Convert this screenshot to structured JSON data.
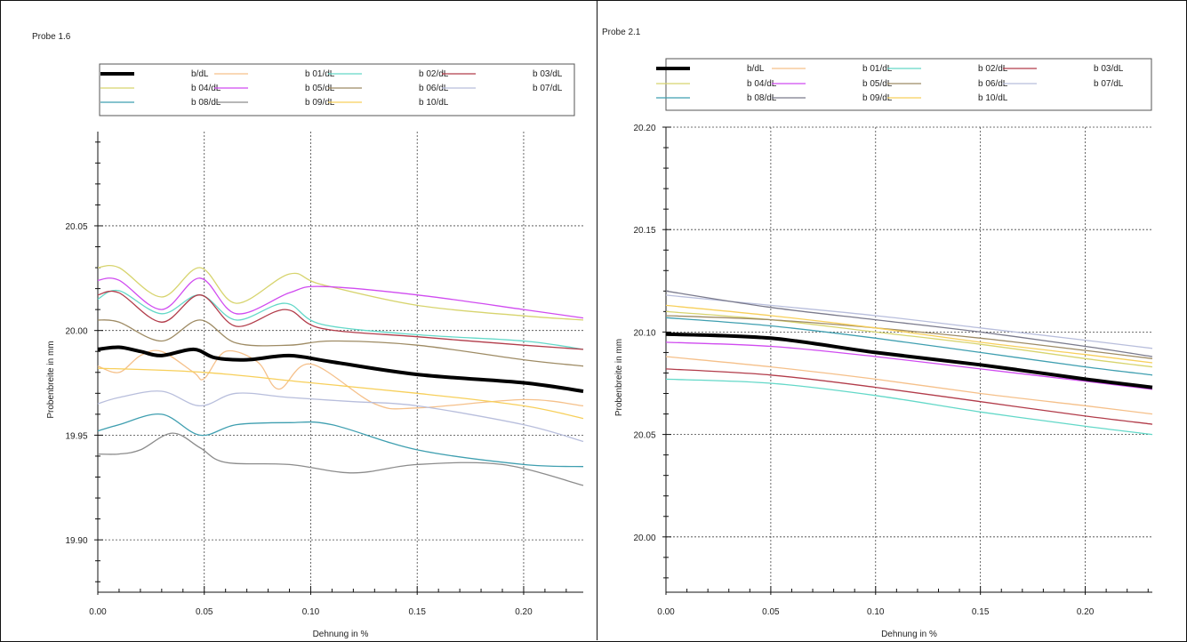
{
  "chart_data": [
    {
      "type": "line",
      "title": "Probe 1.6",
      "xlabel": "Dehnung in %",
      "ylabel": "Probenbreite in mm",
      "xlim": [
        0.0,
        0.228
      ],
      "ylim": [
        19.875,
        20.095
      ],
      "xticks": [
        0.0,
        0.05,
        0.1,
        0.15,
        0.2
      ],
      "xtick_labels": [
        "0.00",
        "0.05",
        "0.10",
        "0.15",
        "0.20"
      ],
      "yticks": [
        19.9,
        19.95,
        20.0,
        20.05
      ],
      "ytick_labels": [
        "19.90",
        "19.95",
        "20.00",
        "20.05"
      ],
      "grid": true,
      "legend_position": "top",
      "series": [
        {
          "name": "b/dL",
          "color": "#000000",
          "bold": true,
          "x": [
            0,
            0.01,
            0.02,
            0.03,
            0.045,
            0.055,
            0.07,
            0.09,
            0.11,
            0.15,
            0.2,
            0.228
          ],
          "y": [
            19.991,
            19.992,
            19.99,
            19.988,
            19.991,
            19.987,
            19.986,
            19.988,
            19.985,
            19.979,
            19.975,
            19.971
          ]
        },
        {
          "name": "b 01/dL",
          "color": "#f5c08a",
          "x": [
            0,
            0.01,
            0.02,
            0.03,
            0.045,
            0.05,
            0.06,
            0.075,
            0.085,
            0.1,
            0.13,
            0.15,
            0.2,
            0.228
          ],
          "y": [
            19.983,
            19.98,
            19.988,
            19.99,
            19.98,
            19.977,
            19.99,
            19.985,
            19.972,
            19.984,
            19.965,
            19.963,
            19.967,
            19.964
          ]
        },
        {
          "name": "b 02/dL",
          "color": "#63d8c8",
          "x": [
            0,
            0.01,
            0.03,
            0.048,
            0.065,
            0.088,
            0.105,
            0.15,
            0.2,
            0.228
          ],
          "y": [
            20.015,
            20.019,
            20.008,
            20.017,
            20.005,
            20.013,
            20.003,
            19.998,
            19.995,
            19.991
          ]
        },
        {
          "name": "b 03/dL",
          "color": "#b23c4a",
          "x": [
            0,
            0.01,
            0.03,
            0.048,
            0.065,
            0.088,
            0.105,
            0.15,
            0.2,
            0.228
          ],
          "y": [
            20.017,
            20.018,
            20.004,
            20.017,
            20.002,
            20.01,
            20.001,
            19.997,
            19.993,
            19.991
          ]
        },
        {
          "name": "b 04/dL",
          "color": "#d7d46e",
          "x": [
            0,
            0.01,
            0.03,
            0.048,
            0.065,
            0.09,
            0.105,
            0.15,
            0.2,
            0.228
          ],
          "y": [
            20.03,
            20.03,
            20.016,
            20.03,
            20.013,
            20.027,
            20.022,
            20.012,
            20.007,
            20.005
          ]
        },
        {
          "name": "b 05/dL",
          "color": "#d04bf0",
          "x": [
            0,
            0.01,
            0.03,
            0.048,
            0.065,
            0.09,
            0.105,
            0.15,
            0.2,
            0.228
          ],
          "y": [
            20.024,
            20.024,
            20.01,
            20.025,
            20.008,
            20.018,
            20.021,
            20.017,
            20.01,
            20.006
          ]
        },
        {
          "name": "b 06/dL",
          "color": "#9e8b64",
          "x": [
            0,
            0.01,
            0.03,
            0.048,
            0.065,
            0.09,
            0.11,
            0.15,
            0.2,
            0.228
          ],
          "y": [
            20.005,
            20.004,
            19.995,
            20.005,
            19.994,
            19.993,
            19.995,
            19.993,
            19.986,
            19.983
          ]
        },
        {
          "name": "b 07/dL",
          "color": "#b8bedc",
          "x": [
            0,
            0.01,
            0.03,
            0.048,
            0.065,
            0.09,
            0.12,
            0.15,
            0.2,
            0.228
          ],
          "y": [
            19.965,
            19.968,
            19.971,
            19.964,
            19.97,
            19.968,
            19.966,
            19.964,
            19.955,
            19.947
          ]
        },
        {
          "name": "b 08/dL",
          "color": "#3f9fb0",
          "x": [
            0,
            0.01,
            0.03,
            0.048,
            0.065,
            0.09,
            0.11,
            0.15,
            0.2,
            0.228
          ],
          "y": [
            19.952,
            19.955,
            19.96,
            19.95,
            19.955,
            19.956,
            19.955,
            19.943,
            19.936,
            19.935
          ]
        },
        {
          "name": "b 09/dL",
          "color": "#8c8c8c",
          "x": [
            0,
            0.01,
            0.02,
            0.035,
            0.048,
            0.06,
            0.09,
            0.12,
            0.15,
            0.19,
            0.228
          ],
          "y": [
            19.941,
            19.941,
            19.943,
            19.951,
            19.944,
            19.937,
            19.936,
            19.932,
            19.936,
            19.936,
            19.926
          ]
        },
        {
          "name": "b 10/dL",
          "color": "#f7cf5a",
          "x": [
            0,
            0.05,
            0.1,
            0.15,
            0.2,
            0.228
          ],
          "y": [
            19.982,
            19.98,
            19.975,
            19.97,
            19.964,
            19.958
          ]
        }
      ]
    },
    {
      "type": "line",
      "title": "Probe 2.1",
      "xlabel": "Dehnung in %",
      "ylabel": "Probenbreite in mm",
      "xlim": [
        0.0,
        0.232
      ],
      "ylim": [
        19.973,
        20.2
      ],
      "xticks": [
        0.0,
        0.05,
        0.1,
        0.15,
        0.2
      ],
      "xtick_labels": [
        "0.00",
        "0.05",
        "0.10",
        "0.15",
        "0.20"
      ],
      "yticks": [
        20.0,
        20.05,
        20.1,
        20.15,
        20.2
      ],
      "ytick_labels": [
        "20.00",
        "20.05",
        "20.10",
        "20.15",
        "20.20"
      ],
      "grid": true,
      "legend_position": "top",
      "series": [
        {
          "name": "b/dL",
          "color": "#000000",
          "bold": true,
          "x": [
            0,
            0.05,
            0.1,
            0.15,
            0.2,
            0.232
          ],
          "y": [
            20.099,
            20.097,
            20.09,
            20.084,
            20.077,
            20.073
          ]
        },
        {
          "name": "b 01/dL",
          "color": "#f5c08a",
          "x": [
            0,
            0.05,
            0.1,
            0.15,
            0.2,
            0.232
          ],
          "y": [
            20.088,
            20.083,
            20.077,
            20.07,
            20.064,
            20.06
          ]
        },
        {
          "name": "b 02/dL",
          "color": "#63d8c8",
          "x": [
            0,
            0.05,
            0.1,
            0.15,
            0.2,
            0.232
          ],
          "y": [
            20.077,
            20.075,
            20.069,
            20.061,
            20.054,
            20.05
          ]
        },
        {
          "name": "b 03/dL",
          "color": "#b23c4a",
          "x": [
            0,
            0.05,
            0.1,
            0.15,
            0.2,
            0.232
          ],
          "y": [
            20.082,
            20.079,
            20.073,
            20.066,
            20.059,
            20.055
          ]
        },
        {
          "name": "b 04/dL",
          "color": "#d7d46e",
          "x": [
            0,
            0.05,
            0.1,
            0.15,
            0.2,
            0.232
          ],
          "y": [
            20.11,
            20.106,
            20.1,
            20.094,
            20.087,
            20.083
          ]
        },
        {
          "name": "b 05/dL",
          "color": "#d04bf0",
          "x": [
            0,
            0.05,
            0.1,
            0.15,
            0.2,
            0.232
          ],
          "y": [
            20.095,
            20.093,
            20.088,
            20.082,
            20.076,
            20.072
          ]
        },
        {
          "name": "b 06/dL",
          "color": "#9e8b64",
          "x": [
            0,
            0.05,
            0.1,
            0.15,
            0.2,
            0.232
          ],
          "y": [
            20.108,
            20.106,
            20.102,
            20.097,
            20.091,
            20.087
          ]
        },
        {
          "name": "b 07/dL",
          "color": "#b8bedc",
          "x": [
            0,
            0.05,
            0.1,
            0.15,
            0.2,
            0.232
          ],
          "y": [
            20.118,
            20.113,
            20.108,
            20.102,
            20.096,
            20.092
          ]
        },
        {
          "name": "b 08/dL",
          "color": "#3f9fb0",
          "x": [
            0,
            0.05,
            0.1,
            0.15,
            0.2,
            0.232
          ],
          "y": [
            20.107,
            20.103,
            20.097,
            20.09,
            20.083,
            20.079
          ]
        },
        {
          "name": "b 09/dL",
          "color": "#7a7a8c",
          "x": [
            0,
            0.05,
            0.1,
            0.15,
            0.2,
            0.232
          ],
          "y": [
            20.12,
            20.112,
            20.106,
            20.1,
            20.093,
            20.088
          ]
        },
        {
          "name": "b 10/dL",
          "color": "#f7cf5a",
          "x": [
            0,
            0.05,
            0.1,
            0.15,
            0.2,
            0.232
          ],
          "y": [
            20.113,
            20.108,
            20.102,
            20.095,
            20.089,
            20.085
          ]
        }
      ]
    }
  ]
}
